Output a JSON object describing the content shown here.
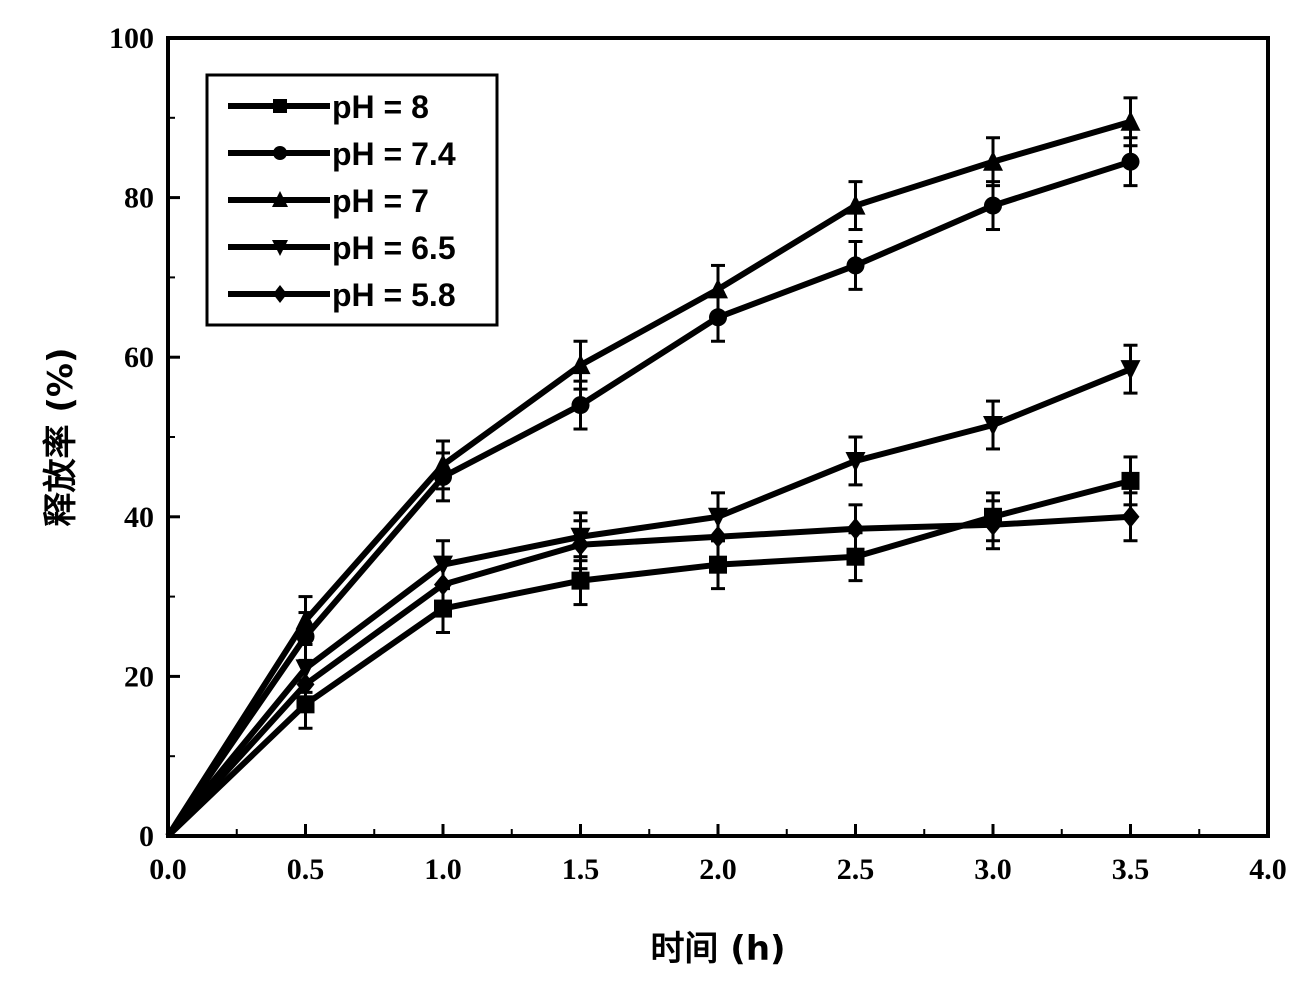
{
  "chart_data": {
    "type": "line",
    "title": "",
    "xlabel": "时间 (h)",
    "ylabel": "释放率 (%)",
    "xlim": [
      0,
      4
    ],
    "ylim": [
      0,
      100
    ],
    "xticks": [
      "0.0",
      "0.5",
      "1.0",
      "1.5",
      "2.0",
      "2.5",
      "3.0",
      "3.5",
      "4.0"
    ],
    "yticks": [
      "0",
      "20",
      "40",
      "60",
      "80",
      "100"
    ],
    "grid": false,
    "legend_position": "top-left",
    "x": [
      0,
      0.5,
      1.0,
      1.5,
      2.0,
      2.5,
      3.0,
      3.5
    ],
    "series": [
      {
        "name": "pH = 8",
        "marker": "square",
        "values": [
          0,
          16.5,
          28.5,
          32,
          34,
          35,
          40,
          44.5
        ],
        "error": 3
      },
      {
        "name": "pH = 7.4",
        "marker": "circle",
        "values": [
          0,
          25,
          45,
          54,
          65,
          71.5,
          79,
          84.5
        ],
        "error": 3
      },
      {
        "name": "pH = 7",
        "marker": "triangle-up",
        "values": [
          0,
          27,
          46.5,
          59,
          68.5,
          79,
          84.5,
          89.5
        ],
        "error": 3
      },
      {
        "name": "pH = 6.5",
        "marker": "triangle-down",
        "values": [
          0,
          21,
          34,
          37.5,
          40,
          47,
          51.5,
          58.5
        ],
        "error": 3
      },
      {
        "name": "pH = 5.8",
        "marker": "diamond",
        "values": [
          0,
          19,
          31.5,
          36.5,
          37.5,
          38.5,
          39,
          40
        ],
        "error": 3
      }
    ]
  }
}
